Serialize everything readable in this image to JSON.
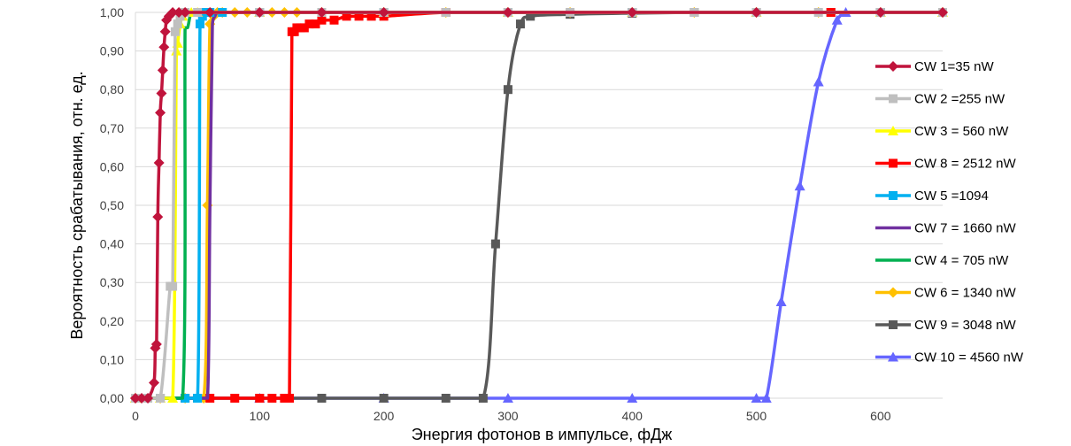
{
  "chart_data": {
    "type": "line",
    "xlabel": "Энергия фотонов в импульсе, фДж",
    "ylabel": "Вероятность срабатывания, отн. ед.",
    "xlim": [
      0,
      650
    ],
    "ylim": [
      0,
      1
    ],
    "x_ticks": [
      0,
      100,
      200,
      300,
      400,
      500,
      600
    ],
    "x_tick_labels": [
      "0",
      "100",
      "200",
      "300",
      "400",
      "500",
      "600"
    ],
    "y_ticks": [
      0,
      0.1,
      0.2,
      0.3,
      0.4,
      0.5,
      0.6,
      0.7,
      0.8,
      0.9,
      1.0
    ],
    "y_tick_labels": [
      "0,00",
      "0,10",
      "0,20",
      "0,30",
      "0,40",
      "0,50",
      "0,60",
      "0,70",
      "0,80",
      "0,90",
      "1,00"
    ],
    "grid": "horizontal",
    "legend_position": "right",
    "series": [
      {
        "name": "CW 1=35 nW",
        "color": "#c0143c",
        "marker": "diamond",
        "x": [
          0,
          5,
          10,
          15,
          16,
          17,
          18,
          19,
          20,
          21,
          22,
          23,
          24,
          25,
          27,
          30,
          35,
          40,
          60,
          100,
          150,
          200,
          300,
          400,
          500,
          600,
          650
        ],
        "y": [
          0,
          0,
          0,
          0.04,
          0.13,
          0.14,
          0.47,
          0.61,
          0.74,
          0.79,
          0.85,
          0.91,
          0.95,
          0.98,
          0.99,
          1.0,
          1.0,
          1.0,
          1.0,
          1.0,
          1.0,
          1.0,
          1.0,
          1.0,
          1.0,
          1.0,
          1.0
        ]
      },
      {
        "name": "CW 2 =255 nW",
        "color": "#bfbfbf",
        "marker": "square",
        "x": [
          0,
          10,
          20,
          28,
          30,
          32,
          34,
          36,
          40,
          50,
          100,
          150,
          200,
          250,
          300,
          350,
          400,
          450,
          500,
          550,
          600,
          650
        ],
        "y": [
          0,
          0,
          0,
          0.29,
          0.29,
          0.95,
          0.97,
          0.99,
          1.0,
          1.0,
          1.0,
          1.0,
          1.0,
          1.0,
          1.0,
          1.0,
          1.0,
          1.0,
          1.0,
          1.0,
          1.0,
          1.0
        ]
      },
      {
        "name": "CW 3 = 560 nW",
        "color": "#ffff00",
        "marker": "triangle",
        "x": [
          0,
          20,
          30,
          33,
          34,
          36,
          38,
          40,
          45,
          50,
          100,
          200,
          300,
          400,
          500,
          600,
          650
        ],
        "y": [
          0,
          0,
          0,
          0.9,
          0.92,
          0.97,
          0.99,
          1.0,
          1.0,
          1.0,
          1.0,
          1.0,
          1.0,
          1.0,
          1.0,
          1.0,
          1.0
        ]
      },
      {
        "name": "CW 8 = 2512 nW",
        "color": "#ff0000",
        "marker": "square",
        "x": [
          0,
          20,
          40,
          60,
          80,
          100,
          110,
          120,
          124,
          126,
          128,
          130,
          133,
          136,
          140,
          145,
          150,
          160,
          170,
          180,
          190,
          200,
          250,
          300,
          400,
          500,
          560,
          600,
          650
        ],
        "y": [
          0,
          0,
          0,
          0,
          0,
          0,
          0,
          0,
          0.0,
          0.95,
          0.95,
          0.96,
          0.96,
          0.96,
          0.97,
          0.97,
          0.98,
          0.98,
          0.99,
          0.99,
          0.99,
          0.99,
          1.0,
          1.0,
          1.0,
          1.0,
          1.0,
          1.0,
          1.0
        ]
      },
      {
        "name": "CW 5 =1094",
        "color": "#00b0f0",
        "marker": "square",
        "x": [
          0,
          20,
          40,
          50,
          52,
          54,
          56,
          60,
          70,
          100,
          200,
          300,
          400,
          500,
          600,
          650
        ],
        "y": [
          0,
          0,
          0,
          0,
          0.97,
          0.99,
          1.0,
          1.0,
          1.0,
          1.0,
          1.0,
          1.0,
          1.0,
          1.0,
          1.0,
          1.0
        ]
      },
      {
        "name": "CW 7 = 1660 nW",
        "color": "#7030a0",
        "marker": "none",
        "x": [
          0,
          30,
          50,
          58,
          60,
          62,
          64,
          66,
          70,
          100,
          200,
          300,
          400,
          500,
          600,
          650
        ],
        "y": [
          0,
          0,
          0,
          0,
          0.5,
          0.97,
          0.99,
          1.0,
          1.0,
          1.0,
          1.0,
          1.0,
          1.0,
          1.0,
          1.0,
          1.0
        ]
      },
      {
        "name": "CW 4 = 705 nW",
        "color": "#00b050",
        "marker": "none",
        "x": [
          0,
          20,
          38,
          40,
          42,
          44,
          46,
          50,
          60,
          100,
          200,
          300,
          400,
          500,
          600,
          650
        ],
        "y": [
          0,
          0,
          0,
          0.96,
          0.96,
          0.99,
          1.0,
          1.0,
          1.0,
          1.0,
          1.0,
          1.0,
          1.0,
          1.0,
          1.0,
          1.0
        ]
      },
      {
        "name": "CW 6 = 1340 nW",
        "color": "#ffc000",
        "marker": "diamond",
        "x": [
          0,
          20,
          40,
          55,
          58,
          60,
          63,
          66,
          70,
          80,
          90,
          100,
          110,
          120,
          130,
          150,
          200,
          250,
          300,
          350,
          400,
          450,
          500,
          550,
          600,
          650
        ],
        "y": [
          0,
          0,
          0,
          0,
          0.5,
          0.97,
          0.99,
          1.0,
          1.0,
          1.0,
          1.0,
          1.0,
          1.0,
          1.0,
          1.0,
          1.0,
          1.0,
          1.0,
          1.0,
          1.0,
          1.0,
          1.0,
          1.0,
          1.0,
          1.0,
          1.0
        ]
      },
      {
        "name": "CW 9 = 3048 nW",
        "color": "#595959",
        "marker": "square",
        "x": [
          0,
          50,
          100,
          150,
          200,
          250,
          280,
          290,
          300,
          310,
          318,
          350,
          400,
          450,
          500,
          560,
          600,
          650
        ],
        "y": [
          0,
          0,
          0,
          0,
          0,
          0,
          0,
          0.4,
          0.8,
          0.97,
          0.99,
          0.995,
          0.998,
          1.0,
          1.0,
          1.0,
          1.0,
          1.0
        ]
      },
      {
        "name": "CW 10 = 4560 nW",
        "color": "#6666ff",
        "marker": "triangle",
        "x": [
          0,
          100,
          200,
          300,
          400,
          500,
          508,
          520,
          535,
          550,
          565,
          572
        ],
        "y": [
          0,
          0,
          0,
          0,
          0,
          0,
          0.0,
          0.25,
          0.55,
          0.82,
          0.98,
          1.0
        ]
      }
    ]
  }
}
